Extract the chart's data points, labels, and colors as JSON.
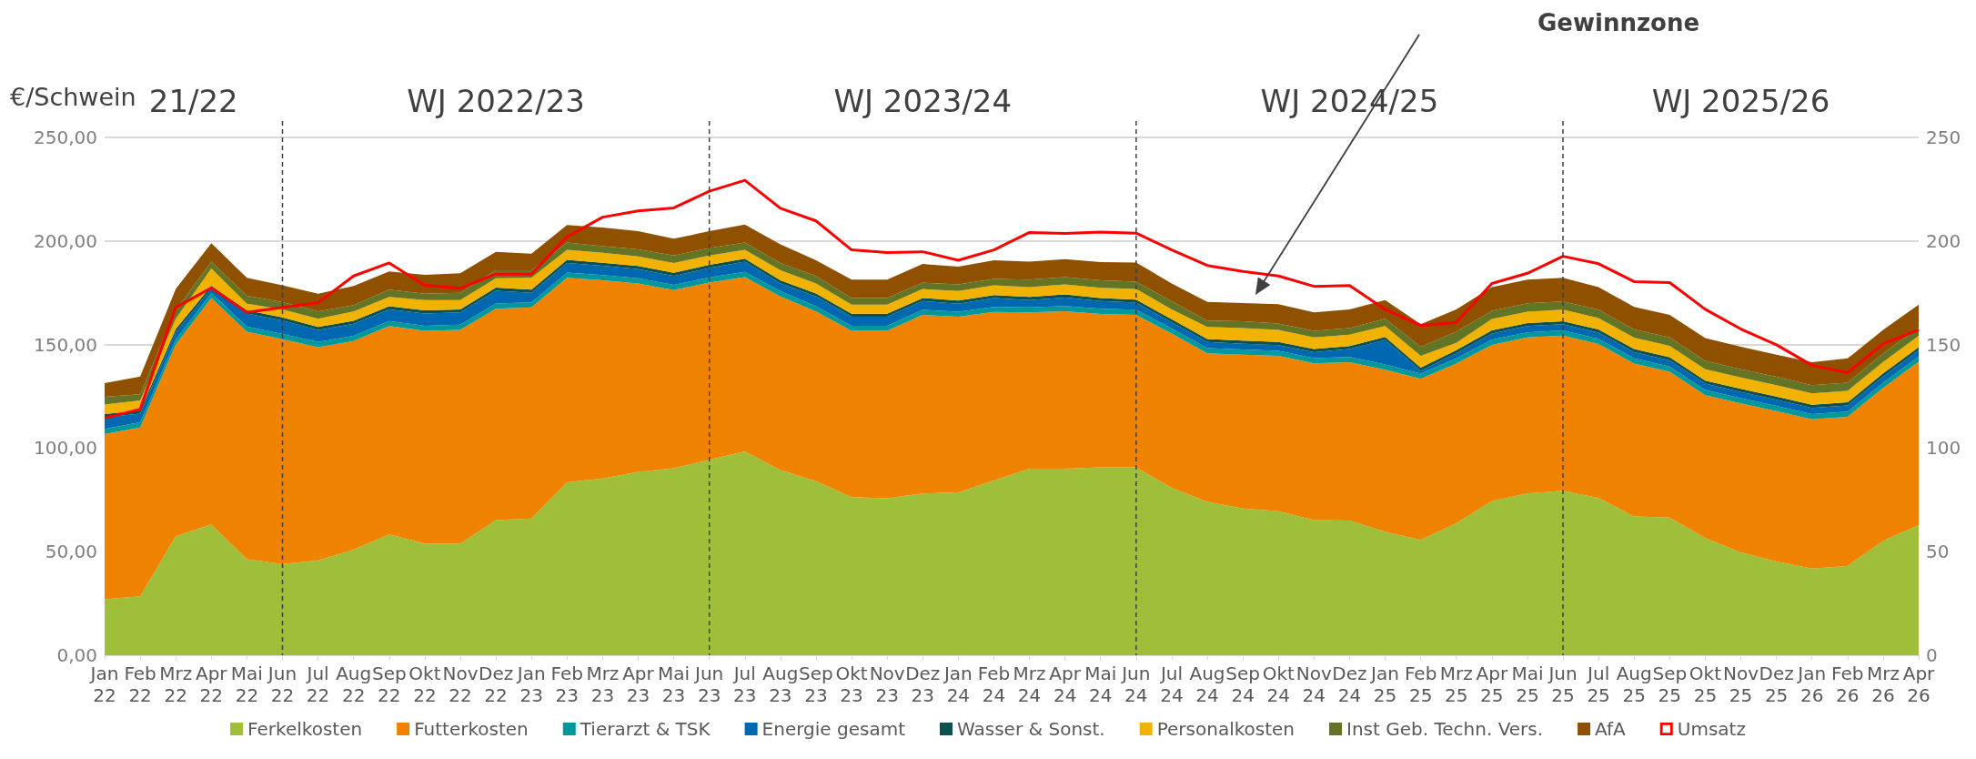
{
  "chart_data": {
    "type": "area",
    "stacked": true,
    "ylabel": "€/Schwein",
    "categories": [
      "Jan 22",
      "Feb 22",
      "Mrz 22",
      "Apr 22",
      "Mai 22",
      "Jun 22",
      "Jul 22",
      "Aug 22",
      "Sep 22",
      "Okt 22",
      "Nov 22",
      "Dez 22",
      "Jan 23",
      "Feb 23",
      "Mrz 23",
      "Apr 23",
      "Mai 23",
      "Jun 23",
      "Jul 23",
      "Aug 23",
      "Sep 23",
      "Okt 23",
      "Nov 23",
      "Dez 23",
      "Jan 24",
      "Feb 24",
      "Mrz 24",
      "Apr 24",
      "Mai 24",
      "Jun 24",
      "Jul 24",
      "Aug 24",
      "Sep 24",
      "Okt 24",
      "Nov 24",
      "Dez 24",
      "Jan 25",
      "Feb 25",
      "Mrz 25",
      "Apr 25",
      "Mai 25",
      "Jun 25",
      "Jul 25",
      "Aug 25",
      "Sep 25",
      "Okt 25",
      "Nov 25",
      "Dez 25",
      "Jan 26",
      "Feb 26",
      "Mrz 26",
      "Apr 26"
    ],
    "series": [
      {
        "name": "Ferkelkosten",
        "color": "#9fbe3a",
        "values": [
          27,
          28.4,
          57.5,
          63.2,
          46.3,
          44,
          45.8,
          51,
          58.3,
          53.9,
          53.9,
          65.2,
          66,
          83.5,
          85.3,
          88.5,
          90.3,
          94.3,
          98.4,
          89.4,
          84,
          76.3,
          75.8,
          78.1,
          78.6,
          84.4,
          90.1,
          90.1,
          90.7,
          90.7,
          80.8,
          74,
          70.9,
          69.5,
          65.2,
          65,
          59.6,
          55.7,
          63.7,
          74.5,
          78.1,
          79.4,
          75.9,
          67,
          66.4,
          56.6,
          49.7,
          45.2,
          41.8,
          43.1,
          55.3,
          62.8
        ]
      },
      {
        "name": "Futterkosten",
        "color": "#ef8300",
        "values": [
          79.8,
          81.6,
          92.5,
          109.2,
          109.9,
          108.6,
          102.9,
          100.7,
          100.6,
          102.7,
          103.2,
          102.1,
          101.9,
          98.7,
          95.7,
          91,
          86,
          85.6,
          84.2,
          83.8,
          82,
          80.3,
          80.8,
          86.2,
          84.8,
          81.3,
          75.4,
          76,
          74.1,
          73.6,
          74.5,
          71.8,
          74.2,
          75,
          75.7,
          76.5,
          78.3,
          77.8,
          77.1,
          75.3,
          75.3,
          74.9,
          74.4,
          73.8,
          70.5,
          69,
          71.9,
          72.7,
          72.1,
          72,
          73.8,
          78.9
        ]
      },
      {
        "name": "Tierarzt & TSK",
        "color": "#00989a",
        "values": [
          2.5,
          2.5,
          2.5,
          2.5,
          2.5,
          2.5,
          2.5,
          2.5,
          2.5,
          2.5,
          2.5,
          2.5,
          2.5,
          2.5,
          2.5,
          2.5,
          2.5,
          2.5,
          2.5,
          2.5,
          2.5,
          2.5,
          2.5,
          2.5,
          2.5,
          2.5,
          2.5,
          2.5,
          2.5,
          2.5,
          2.5,
          2.5,
          2.5,
          2.5,
          2.5,
          2.5,
          2.5,
          2.5,
          2.5,
          2.5,
          2.5,
          2.5,
          2.5,
          2.5,
          2.5,
          2.5,
          2.5,
          2.5,
          2.5,
          2.5,
          2.5,
          2.5
        ]
      },
      {
        "name": "Energie gesamt",
        "color": "#0067b1",
        "values": [
          5.6,
          4.2,
          3.5,
          2,
          6.3,
          6.5,
          5.8,
          5.8,
          5.6,
          5.9,
          5.9,
          6.2,
          4.6,
          4.7,
          4.5,
          4.4,
          4.3,
          4.6,
          4.9,
          3.8,
          4.7,
          4.3,
          4.3,
          4.2,
          3.8,
          4.2,
          3.5,
          4.1,
          3.7,
          3.4,
          2.9,
          2.9,
          2.8,
          2.7,
          2.9,
          3.8,
          11.8,
          1.3,
          2.5,
          3,
          3,
          3,
          3,
          3,
          3,
          3,
          3,
          3,
          3,
          3,
          3,
          3
        ]
      },
      {
        "name": "Wasser & Sonst.",
        "color": "#0b5150",
        "values": [
          1.5,
          1.5,
          1.5,
          1.5,
          1.5,
          1.5,
          1.5,
          1.5,
          1.5,
          1.5,
          1.5,
          1.5,
          1.5,
          1.5,
          1.5,
          1.5,
          1.5,
          1.5,
          1.5,
          1.5,
          1.5,
          1.5,
          1.5,
          1.5,
          1.5,
          1.5,
          1.5,
          1.5,
          1.5,
          1.5,
          1.5,
          1.5,
          1.5,
          1.5,
          1.5,
          1.5,
          1.5,
          1.5,
          1.5,
          1.5,
          1.5,
          1.5,
          1.5,
          1.5,
          1.5,
          1.5,
          1.5,
          1.5,
          1.5,
          1.5,
          1.5,
          1.5
        ]
      },
      {
        "name": "Personalkosten",
        "color": "#f2b200",
        "values": [
          4.6,
          4.8,
          5,
          8.3,
          3.2,
          3.9,
          4,
          4.5,
          4.5,
          5,
          4.5,
          4.5,
          5.7,
          4.8,
          4.8,
          4.6,
          4.8,
          4.5,
          4.2,
          4.8,
          4.8,
          4.4,
          4.4,
          4.3,
          4.7,
          4.7,
          4.7,
          4.8,
          4.9,
          5.1,
          4.8,
          5.8,
          6.1,
          5.9,
          5.7,
          5.5,
          5.2,
          5.7,
          3.5,
          5.5,
          5.5,
          5.5,
          5.5,
          5.5,
          5.5,
          5.5,
          5.5,
          5.5,
          5.5,
          5.5,
          5.5,
          5.5
        ]
      },
      {
        "name": "Inst Geb. Techn. Vers.",
        "color": "#647425",
        "values": [
          3.8,
          3,
          4,
          3.3,
          3.9,
          3.5,
          3.5,
          3,
          3.5,
          3,
          3.5,
          3.8,
          3.6,
          3.6,
          3.2,
          3.5,
          3.6,
          3.6,
          3.6,
          3.6,
          3.6,
          3.1,
          3.1,
          3.1,
          3.1,
          3.1,
          3.6,
          3.6,
          3.6,
          3.6,
          3.9,
          3.1,
          3.2,
          3,
          3.1,
          3.2,
          3.6,
          4.5,
          5.4,
          4,
          4,
          4,
          4,
          4,
          4,
          4,
          4,
          4,
          4,
          4,
          4,
          4
        ]
      },
      {
        "name": "AfA",
        "color": "#8f5000",
        "values": [
          6.6,
          8.6,
          10.3,
          8.9,
          8.6,
          8.1,
          8.5,
          9.3,
          8.8,
          9.2,
          9.4,
          9,
          8.1,
          8.4,
          9,
          8.7,
          8.1,
          8.1,
          8.6,
          9,
          7.6,
          8.9,
          8.9,
          9,
          8.6,
          9,
          8.7,
          8.6,
          8.8,
          9.2,
          8.6,
          9,
          8.8,
          9.4,
          8.9,
          9,
          9,
          10.8,
          10.8,
          11.4,
          11.4,
          11.4,
          10.9,
          10.9,
          10.9,
          11,
          10.9,
          10.7,
          11.1,
          11.7,
          11.5,
          11.1
        ]
      },
      {
        "name": "Umsatz",
        "type": "line",
        "color": "#ff0000",
        "values": [
          114.5,
          118.8,
          167.9,
          177.4,
          165.5,
          167.9,
          170.2,
          183.1,
          189.4,
          178.6,
          177.2,
          184,
          184,
          202,
          211.5,
          214.5,
          216,
          224,
          229.3,
          215.8,
          209.7,
          195.7,
          194.4,
          194.8,
          190.7,
          195.7,
          204.1,
          203.6,
          204.3,
          203.8,
          195.7,
          188.2,
          185.3,
          183.1,
          178.1,
          178.5,
          167,
          159.2,
          160.7,
          179.5,
          184.4,
          192.6,
          189,
          180.4,
          179.9,
          167,
          157.5,
          149.9,
          140,
          136.4,
          150.3,
          157.1
        ]
      }
    ],
    "ylim": [
      0,
      250
    ],
    "yticks": [
      {
        "value": 0,
        "label": "0,00"
      },
      {
        "value": 50,
        "label": "50,00"
      },
      {
        "value": 100,
        "label": "100,00"
      },
      {
        "value": 150,
        "label": "150,00"
      },
      {
        "value": 200,
        "label": "200,00"
      },
      {
        "value": 250,
        "label": "250,00"
      }
    ],
    "y2lim": [
      0,
      250
    ],
    "y2ticks": [
      0,
      50,
      100,
      150,
      200,
      250
    ],
    "ref_lines": [
      {
        "axis": "x",
        "value": "Jun 22",
        "line_style": "dashed",
        "color": "#404040"
      },
      {
        "axis": "x",
        "value": "Jun 23",
        "line_style": "dashed",
        "color": "#404040"
      },
      {
        "axis": "x",
        "value": "Jun 24",
        "line_style": "dashed",
        "color": "#404040"
      },
      {
        "axis": "x",
        "value": "Jun 25",
        "line_style": "dashed",
        "color": "#404040"
      }
    ],
    "annotations": [
      "21/22",
      "WJ 2022/23",
      "WJ 2023/24",
      "WJ 2024/25",
      "WJ 2025/26",
      "Gewinnzone"
    ],
    "grid": "y",
    "legend": "bottom",
    "marker": "none",
    "line_style": "solid"
  }
}
